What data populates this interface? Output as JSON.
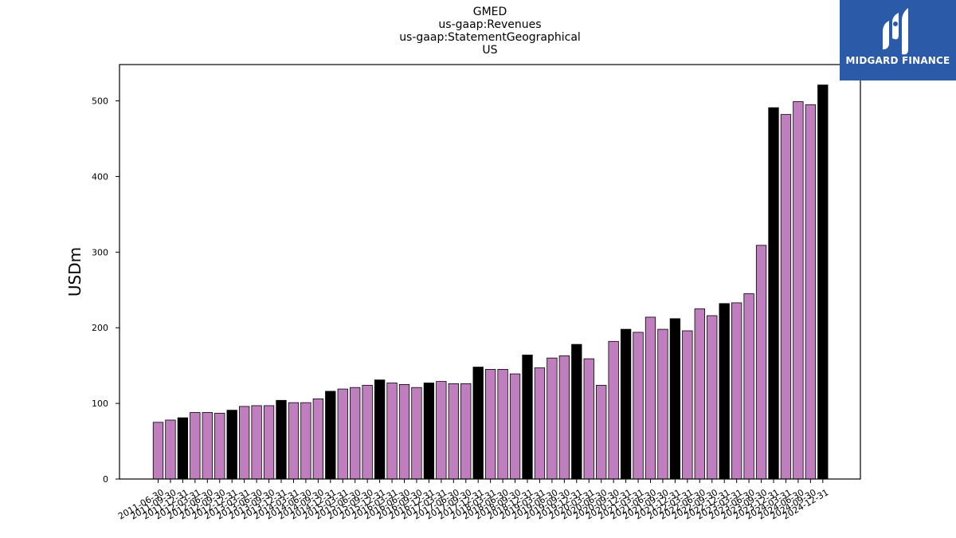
{
  "header": {
    "title_lines": [
      "GMED",
      "us-gaap:Revenues",
      "us-gaap:StatementGeographical",
      "US"
    ]
  },
  "logo": {
    "text": "MIDGARD FINANCE",
    "background": "#2a5aa8"
  },
  "colors": {
    "quarter_bar": "#bf7fbf",
    "annual_bar": "#000000",
    "bar_edge": "#000000"
  },
  "chart_data": {
    "type": "bar",
    "ylabel": "USDm",
    "xlabel": "",
    "ylim": [
      0,
      548
    ],
    "yticks": [
      0,
      100,
      200,
      300,
      400,
      500
    ],
    "categories": [
      "2011-06-30",
      "2011-09-30",
      "2011-12-31",
      "2012-03-31",
      "2012-06-30",
      "2012-09-30",
      "2012-12-31",
      "2013-03-31",
      "2013-06-30",
      "2013-09-30",
      "2013-12-31",
      "2014-03-31",
      "2014-06-30",
      "2014-09-30",
      "2014-12-31",
      "2015-03-31",
      "2015-06-30",
      "2015-09-30",
      "2015-12-31",
      "2016-03-31",
      "2016-06-30",
      "2016-09-30",
      "2016-12-31",
      "2017-03-31",
      "2017-06-30",
      "2017-09-30",
      "2017-12-31",
      "2018-03-31",
      "2018-06-30",
      "2018-09-30",
      "2018-12-31",
      "2019-03-31",
      "2019-06-30",
      "2019-09-30",
      "2019-12-31",
      "2020-03-31",
      "2020-06-30",
      "2020-09-30",
      "2020-12-31",
      "2021-03-31",
      "2021-06-30",
      "2021-09-30",
      "2021-12-31",
      "2022-03-31",
      "2022-06-30",
      "2022-09-30",
      "2022-12-31",
      "2023-03-31",
      "2023-06-30",
      "2023-09-30",
      "2023-12-31",
      "2024-03-31",
      "2024-06-30",
      "2024-09-30",
      "2024-12-31"
    ],
    "values": [
      75,
      78,
      81,
      88,
      88,
      87,
      91,
      96,
      97,
      97,
      104,
      101,
      101,
      106,
      116,
      119,
      121,
      124,
      131,
      127,
      125,
      121,
      127,
      129,
      126,
      126,
      148,
      145,
      145,
      139,
      164,
      147,
      160,
      163,
      178,
      159,
      124,
      182,
      198,
      194,
      214,
      198,
      212,
      196,
      225,
      216,
      232,
      233,
      245,
      309,
      491,
      482,
      499,
      495,
      521
    ],
    "annual": [
      false,
      false,
      true,
      false,
      false,
      false,
      true,
      false,
      false,
      false,
      true,
      false,
      false,
      false,
      true,
      false,
      false,
      false,
      true,
      false,
      false,
      false,
      true,
      false,
      false,
      false,
      true,
      false,
      false,
      false,
      true,
      false,
      false,
      false,
      true,
      false,
      false,
      false,
      true,
      false,
      false,
      false,
      true,
      false,
      false,
      false,
      true,
      false,
      false,
      false,
      true,
      false,
      false,
      false,
      true
    ]
  }
}
